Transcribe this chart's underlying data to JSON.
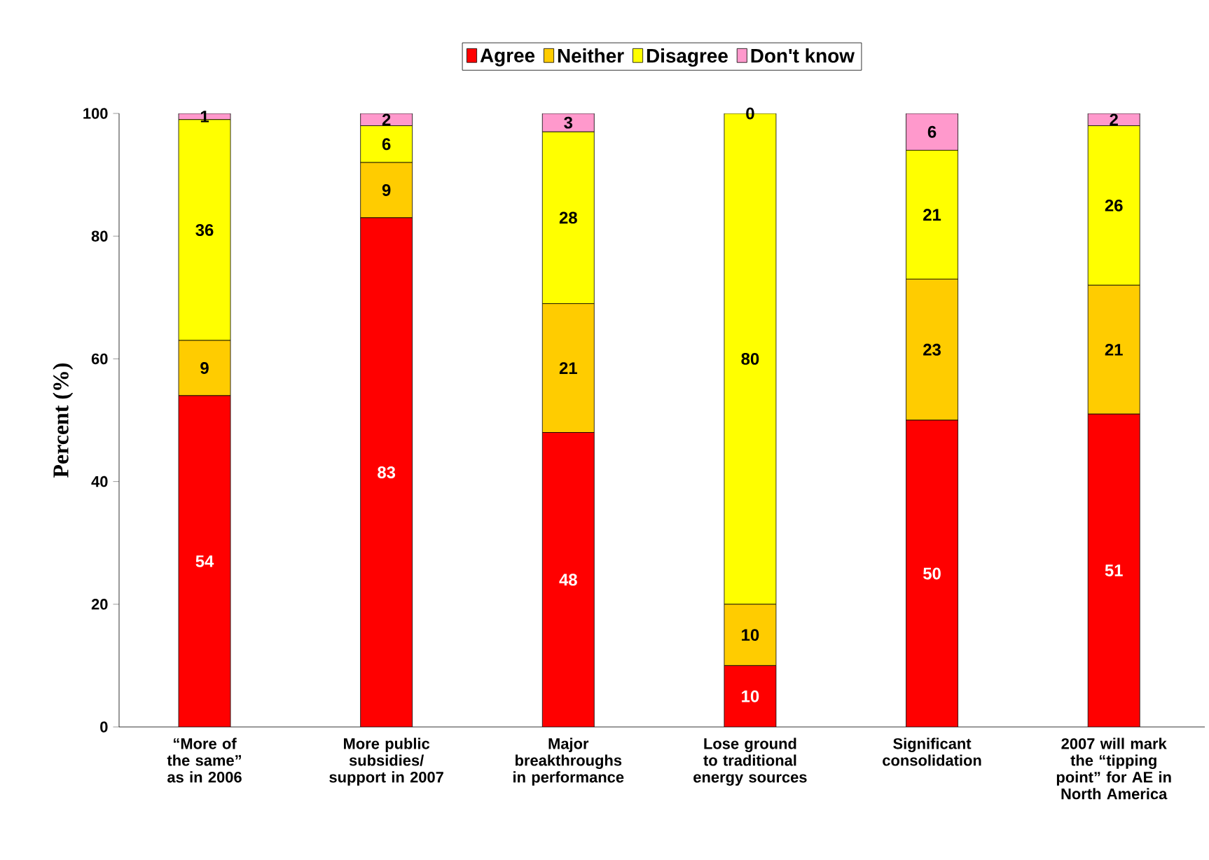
{
  "chart_data": {
    "type": "bar",
    "stacked": true,
    "ylabel": "Percent (%)",
    "categories": [
      "“More of the same” as in 2006",
      "More public subsidies/ support in 2007",
      "Major breakthroughs in performance",
      "Lose ground to traditional energy sources",
      "Significant consolidation",
      "2007 will mark the “tipping point” for AE in North America"
    ],
    "series": [
      {
        "name": "Agree",
        "color": "#ff0000",
        "values": [
          54,
          83,
          48,
          10,
          50,
          51
        ]
      },
      {
        "name": "Neither",
        "color": "#ffcc00",
        "values": [
          9,
          9,
          21,
          10,
          23,
          21
        ]
      },
      {
        "name": "Disagree",
        "color": "#ffff00",
        "values": [
          36,
          6,
          28,
          80,
          21,
          26
        ]
      },
      {
        "name": "Don't know",
        "color": "#ff99cc",
        "values": [
          1,
          2,
          3,
          0,
          6,
          2
        ]
      }
    ],
    "ylim": [
      0,
      100
    ],
    "yticks": [
      0,
      20,
      40,
      60,
      80,
      100
    ],
    "data_labels": true,
    "legend": "top",
    "grid": false
  }
}
